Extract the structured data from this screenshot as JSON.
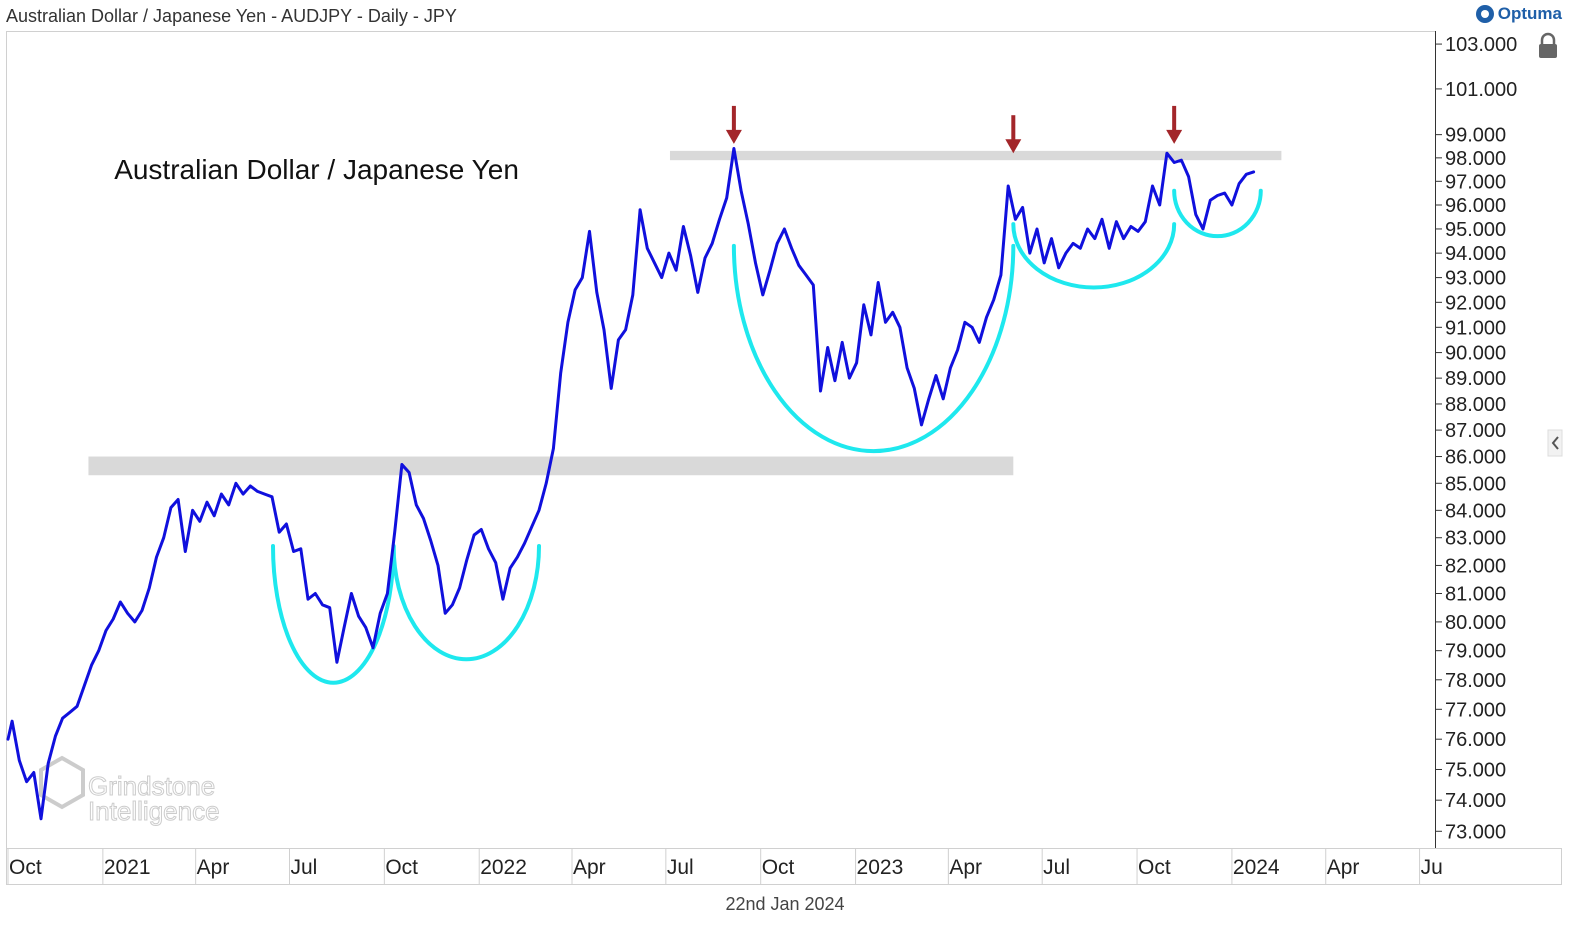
{
  "header": {
    "title": "Australian Dollar / Japanese Yen - AUDJPY - Daily - JPY"
  },
  "brand": {
    "name": "Optuma",
    "color": "#1f5fa8"
  },
  "footer": {
    "date": "22nd Jan 2024"
  },
  "watermark": {
    "line1": "Grindstone",
    "line2": "Intelligence"
  },
  "icons": {
    "lock": "lock-icon",
    "collapse": "chevron-left-icon",
    "logo": "optuma-logo-icon"
  },
  "chart_data": {
    "type": "line",
    "title": "Australian Dollar / Japanese Yen",
    "xlabel": "",
    "ylabel": "",
    "y_scale": "log",
    "ylim": [
      72.5,
      103.5
    ],
    "xlim": [
      "2020-10-01",
      "2024-07-15"
    ],
    "y_ticks": [
      "73.000",
      "74.000",
      "75.000",
      "76.000",
      "77.000",
      "78.000",
      "79.000",
      "80.000",
      "81.000",
      "82.000",
      "83.000",
      "84.000",
      "85.000",
      "86.000",
      "87.000",
      "88.000",
      "89.000",
      "90.000",
      "91.000",
      "92.000",
      "93.000",
      "94.000",
      "95.000",
      "96.000",
      "97.000",
      "98.000",
      "99.000",
      "101.000",
      "103.000"
    ],
    "x_ticks": [
      {
        "label": "Oct",
        "date": "2020-10-01"
      },
      {
        "label": "2021",
        "date": "2021-01-01"
      },
      {
        "label": "Apr",
        "date": "2021-04-01"
      },
      {
        "label": "Jul",
        "date": "2021-07-01"
      },
      {
        "label": "Oct",
        "date": "2021-10-01"
      },
      {
        "label": "2022",
        "date": "2022-01-01"
      },
      {
        "label": "Apr",
        "date": "2022-04-01"
      },
      {
        "label": "Jul",
        "date": "2022-07-01"
      },
      {
        "label": "Oct",
        "date": "2022-10-01"
      },
      {
        "label": "2023",
        "date": "2023-01-01"
      },
      {
        "label": "Apr",
        "date": "2023-04-01"
      },
      {
        "label": "Jul",
        "date": "2023-07-01"
      },
      {
        "label": "Oct",
        "date": "2023-10-01"
      },
      {
        "label": "2024",
        "date": "2024-01-01"
      },
      {
        "label": "Apr",
        "date": "2024-04-01"
      },
      {
        "label": "Ju",
        "date": "2024-07-01"
      }
    ],
    "series": [
      {
        "name": "AUDJPY",
        "color": "#1010dd",
        "points": [
          [
            "2020-10-01",
            76.0
          ],
          [
            "2020-10-05",
            76.6
          ],
          [
            "2020-10-12",
            75.3
          ],
          [
            "2020-10-19",
            74.6
          ],
          [
            "2020-10-26",
            74.9
          ],
          [
            "2020-11-02",
            73.4
          ],
          [
            "2020-11-09",
            75.2
          ],
          [
            "2020-11-16",
            76.1
          ],
          [
            "2020-11-23",
            76.7
          ],
          [
            "2020-11-30",
            76.9
          ],
          [
            "2020-12-07",
            77.1
          ],
          [
            "2020-12-14",
            77.8
          ],
          [
            "2020-12-21",
            78.5
          ],
          [
            "2020-12-28",
            79.0
          ],
          [
            "2021-01-04",
            79.7
          ],
          [
            "2021-01-11",
            80.1
          ],
          [
            "2021-01-18",
            80.7
          ],
          [
            "2021-01-25",
            80.3
          ],
          [
            "2021-02-01",
            80.0
          ],
          [
            "2021-02-08",
            80.4
          ],
          [
            "2021-02-15",
            81.2
          ],
          [
            "2021-02-22",
            82.3
          ],
          [
            "2021-03-01",
            83.0
          ],
          [
            "2021-03-08",
            84.1
          ],
          [
            "2021-03-15",
            84.4
          ],
          [
            "2021-03-22",
            82.5
          ],
          [
            "2021-03-29",
            84.0
          ],
          [
            "2021-04-05",
            83.6
          ],
          [
            "2021-04-12",
            84.3
          ],
          [
            "2021-04-19",
            83.8
          ],
          [
            "2021-04-26",
            84.6
          ],
          [
            "2021-05-03",
            84.2
          ],
          [
            "2021-05-10",
            85.0
          ],
          [
            "2021-05-17",
            84.6
          ],
          [
            "2021-05-24",
            84.9
          ],
          [
            "2021-05-31",
            84.7
          ],
          [
            "2021-06-07",
            84.6
          ],
          [
            "2021-06-14",
            84.5
          ],
          [
            "2021-06-21",
            83.2
          ],
          [
            "2021-06-28",
            83.5
          ],
          [
            "2021-07-05",
            82.5
          ],
          [
            "2021-07-12",
            82.6
          ],
          [
            "2021-07-19",
            80.8
          ],
          [
            "2021-07-26",
            81.0
          ],
          [
            "2021-08-02",
            80.6
          ],
          [
            "2021-08-09",
            80.5
          ],
          [
            "2021-08-16",
            78.6
          ],
          [
            "2021-08-23",
            79.8
          ],
          [
            "2021-08-30",
            81.0
          ],
          [
            "2021-09-06",
            80.2
          ],
          [
            "2021-09-13",
            79.8
          ],
          [
            "2021-09-20",
            79.1
          ],
          [
            "2021-09-27",
            80.3
          ],
          [
            "2021-10-04",
            81.0
          ],
          [
            "2021-10-11",
            83.2
          ],
          [
            "2021-10-18",
            85.7
          ],
          [
            "2021-10-25",
            85.4
          ],
          [
            "2021-11-01",
            84.2
          ],
          [
            "2021-11-08",
            83.7
          ],
          [
            "2021-11-15",
            82.9
          ],
          [
            "2021-11-22",
            82.0
          ],
          [
            "2021-11-29",
            80.3
          ],
          [
            "2021-12-06",
            80.6
          ],
          [
            "2021-12-13",
            81.2
          ],
          [
            "2021-12-20",
            82.2
          ],
          [
            "2021-12-27",
            83.1
          ],
          [
            "2022-01-03",
            83.3
          ],
          [
            "2022-01-10",
            82.6
          ],
          [
            "2022-01-17",
            82.1
          ],
          [
            "2022-01-24",
            80.8
          ],
          [
            "2022-01-31",
            81.9
          ],
          [
            "2022-02-07",
            82.3
          ],
          [
            "2022-02-14",
            82.8
          ],
          [
            "2022-02-21",
            83.4
          ],
          [
            "2022-02-28",
            84.0
          ],
          [
            "2022-03-07",
            85.0
          ],
          [
            "2022-03-14",
            86.3
          ],
          [
            "2022-03-21",
            89.2
          ],
          [
            "2022-03-28",
            91.2
          ],
          [
            "2022-04-04",
            92.5
          ],
          [
            "2022-04-11",
            93.0
          ],
          [
            "2022-04-18",
            94.9
          ],
          [
            "2022-04-25",
            92.4
          ],
          [
            "2022-05-02",
            90.9
          ],
          [
            "2022-05-09",
            88.6
          ],
          [
            "2022-05-16",
            90.5
          ],
          [
            "2022-05-23",
            90.9
          ],
          [
            "2022-05-30",
            92.3
          ],
          [
            "2022-06-06",
            95.8
          ],
          [
            "2022-06-13",
            94.2
          ],
          [
            "2022-06-20",
            93.6
          ],
          [
            "2022-06-27",
            93.0
          ],
          [
            "2022-07-04",
            94.0
          ],
          [
            "2022-07-11",
            93.3
          ],
          [
            "2022-07-18",
            95.1
          ],
          [
            "2022-07-25",
            93.9
          ],
          [
            "2022-08-01",
            92.4
          ],
          [
            "2022-08-08",
            93.8
          ],
          [
            "2022-08-15",
            94.4
          ],
          [
            "2022-08-22",
            95.4
          ],
          [
            "2022-08-29",
            96.3
          ],
          [
            "2022-09-05",
            98.4
          ],
          [
            "2022-09-12",
            96.6
          ],
          [
            "2022-09-19",
            95.2
          ],
          [
            "2022-09-26",
            93.6
          ],
          [
            "2022-10-03",
            92.3
          ],
          [
            "2022-10-10",
            93.3
          ],
          [
            "2022-10-17",
            94.4
          ],
          [
            "2022-10-24",
            95.0
          ],
          [
            "2022-10-31",
            94.2
          ],
          [
            "2022-11-07",
            93.5
          ],
          [
            "2022-11-14",
            93.1
          ],
          [
            "2022-11-21",
            92.7
          ],
          [
            "2022-11-28",
            88.5
          ],
          [
            "2022-12-05",
            90.2
          ],
          [
            "2022-12-12",
            88.9
          ],
          [
            "2022-12-19",
            90.4
          ],
          [
            "2022-12-26",
            89.0
          ],
          [
            "2023-01-02",
            89.6
          ],
          [
            "2023-01-09",
            91.9
          ],
          [
            "2023-01-16",
            90.7
          ],
          [
            "2023-01-23",
            92.8
          ],
          [
            "2023-01-30",
            91.2
          ],
          [
            "2023-02-06",
            91.6
          ],
          [
            "2023-02-13",
            91.0
          ],
          [
            "2023-02-20",
            89.4
          ],
          [
            "2023-02-27",
            88.6
          ],
          [
            "2023-03-06",
            87.2
          ],
          [
            "2023-03-13",
            88.2
          ],
          [
            "2023-03-20",
            89.1
          ],
          [
            "2023-03-27",
            88.2
          ],
          [
            "2023-04-03",
            89.4
          ],
          [
            "2023-04-10",
            90.1
          ],
          [
            "2023-04-17",
            91.2
          ],
          [
            "2023-04-24",
            91.0
          ],
          [
            "2023-05-01",
            90.4
          ],
          [
            "2023-05-08",
            91.4
          ],
          [
            "2023-05-15",
            92.1
          ],
          [
            "2023-05-22",
            93.1
          ],
          [
            "2023-05-29",
            96.8
          ],
          [
            "2023-06-05",
            95.4
          ],
          [
            "2023-06-12",
            95.9
          ],
          [
            "2023-06-19",
            94.0
          ],
          [
            "2023-06-26",
            95.0
          ],
          [
            "2023-07-03",
            93.6
          ],
          [
            "2023-07-10",
            94.6
          ],
          [
            "2023-07-17",
            93.4
          ],
          [
            "2023-07-24",
            94.0
          ],
          [
            "2023-07-31",
            94.4
          ],
          [
            "2023-08-07",
            94.2
          ],
          [
            "2023-08-14",
            95.0
          ],
          [
            "2023-08-21",
            94.6
          ],
          [
            "2023-08-28",
            95.4
          ],
          [
            "2023-09-04",
            94.2
          ],
          [
            "2023-09-11",
            95.3
          ],
          [
            "2023-09-18",
            94.6
          ],
          [
            "2023-09-25",
            95.1
          ],
          [
            "2023-10-02",
            94.9
          ],
          [
            "2023-10-09",
            95.3
          ],
          [
            "2023-10-16",
            96.8
          ],
          [
            "2023-10-23",
            96.0
          ],
          [
            "2023-10-30",
            98.2
          ],
          [
            "2023-11-06",
            97.8
          ],
          [
            "2023-11-13",
            97.9
          ],
          [
            "2023-11-20",
            97.2
          ],
          [
            "2023-11-27",
            95.6
          ],
          [
            "2023-12-04",
            95.0
          ],
          [
            "2023-12-11",
            96.2
          ],
          [
            "2023-12-18",
            96.4
          ],
          [
            "2023-12-25",
            96.5
          ],
          [
            "2024-01-01",
            96.0
          ],
          [
            "2024-01-08",
            96.9
          ],
          [
            "2024-01-15",
            97.3
          ],
          [
            "2024-01-22",
            97.4
          ]
        ]
      }
    ],
    "bands": [
      {
        "name": "",
        "x_start": "2020-12-18",
        "x_end": "2023-06-03",
        "y_low": 85.3,
        "y_high": 86.0,
        "color": "#d9d9d9"
      },
      {
        "name": "",
        "x_start": "2022-07-05",
        "x_end": "2024-02-18",
        "y_low": 97.9,
        "y_high": 98.3,
        "color": "#d9d9d9"
      }
    ],
    "arcs": [
      {
        "x_start": "2021-06-15",
        "x_end": "2021-10-10",
        "y_top": 82.7,
        "y_bottom": 77.9,
        "color": "#1ee8ee"
      },
      {
        "x_start": "2021-10-10",
        "x_end": "2022-02-28",
        "y_top": 82.7,
        "y_bottom": 78.7,
        "color": "#1ee8ee"
      },
      {
        "x_start": "2022-09-05",
        "x_end": "2023-06-03",
        "y_top": 94.3,
        "y_bottom": 86.2,
        "color": "#1ee8ee"
      },
      {
        "x_start": "2023-06-03",
        "x_end": "2023-11-06",
        "y_top": 95.2,
        "y_bottom": 92.6,
        "color": "#1ee8ee"
      },
      {
        "x_start": "2023-11-06",
        "x_end": "2024-01-29",
        "y_top": 96.6,
        "y_bottom": 94.7,
        "color": "#1ee8ee"
      }
    ],
    "markers": [
      {
        "type": "down-arrow",
        "x": "2022-09-05",
        "y": 98.6,
        "color": "#a3262a"
      },
      {
        "type": "down-arrow",
        "x": "2023-06-03",
        "y": 98.2,
        "color": "#a3262a"
      },
      {
        "type": "down-arrow",
        "x": "2023-11-06",
        "y": 98.6,
        "color": "#a3262a"
      }
    ],
    "annotations": [
      {
        "text": "Australian Dollar / Japanese Yen",
        "x": "2021-01-12",
        "y": 97.1
      }
    ],
    "grid": false,
    "legend": "none"
  }
}
